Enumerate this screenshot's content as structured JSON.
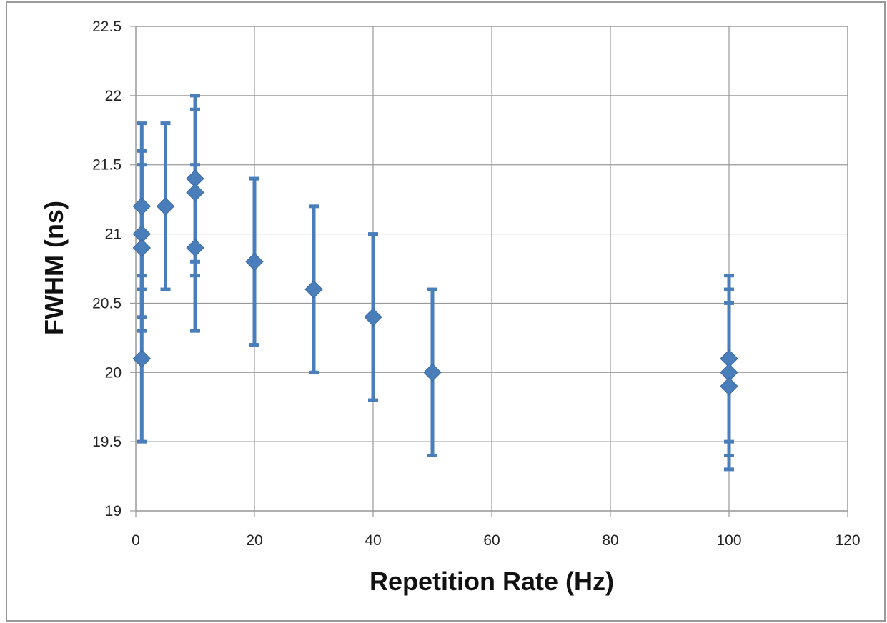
{
  "chart_data": {
    "type": "scatter",
    "title": "",
    "xlabel": "Repetition Rate (Hz)",
    "ylabel": "FWHM (ns)",
    "xlim": [
      0,
      120
    ],
    "ylim": [
      19,
      22.5
    ],
    "x_ticks": [
      0,
      20,
      40,
      60,
      80,
      100,
      120
    ],
    "y_ticks": [
      19,
      19.5,
      20,
      20.5,
      21,
      21.5,
      22,
      22.5
    ],
    "grid": true,
    "legend": "none",
    "error_bars": "symmetric ±0.6 ns",
    "series": [
      {
        "points": [
          {
            "x": 1,
            "y": 21.2,
            "err": 0.6
          },
          {
            "x": 1,
            "y": 21.0,
            "err": 0.6
          },
          {
            "x": 1,
            "y": 20.9,
            "err": 0.6
          },
          {
            "x": 1,
            "y": 20.1,
            "err": 0.6
          },
          {
            "x": 5,
            "y": 21.2,
            "err": 0.6
          },
          {
            "x": 10,
            "y": 21.4,
            "err": 0.6
          },
          {
            "x": 10,
            "y": 21.3,
            "err": 0.6
          },
          {
            "x": 10,
            "y": 20.9,
            "err": 0.6
          },
          {
            "x": 20,
            "y": 20.8,
            "err": 0.6
          },
          {
            "x": 30,
            "y": 20.6,
            "err": 0.6
          },
          {
            "x": 40,
            "y": 20.4,
            "err": 0.6
          },
          {
            "x": 50,
            "y": 20.0,
            "err": 0.6
          },
          {
            "x": 100,
            "y": 20.1,
            "err": 0.6
          },
          {
            "x": 100,
            "y": 20.0,
            "err": 0.6
          },
          {
            "x": 100,
            "y": 19.9,
            "err": 0.6
          }
        ]
      }
    ]
  },
  "colors": {
    "marker": "#4a7ebb",
    "gridline": "#9a9a9a",
    "frame": "#9a9a9a"
  }
}
